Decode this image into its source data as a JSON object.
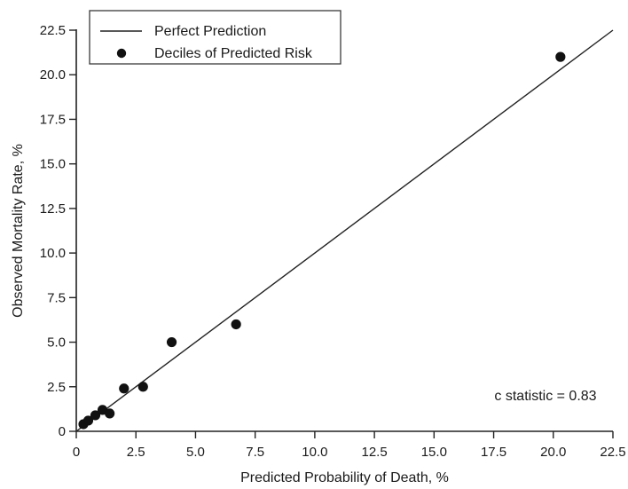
{
  "chart_data": {
    "type": "scatter",
    "xlabel": "Predicted Probability of Death, %",
    "ylabel": "Observed Mortality Rate, %",
    "xlim": [
      0,
      22.5
    ],
    "ylim": [
      0,
      22.5
    ],
    "x_ticks": [
      0,
      2.5,
      5.0,
      7.5,
      10.0,
      12.5,
      15.0,
      17.5,
      20.0,
      22.5
    ],
    "x_tick_labels": [
      "0",
      "2.5",
      "5.0",
      "7.5",
      "10.0",
      "12.5",
      "15.0",
      "17.5",
      "20.0",
      "22.5"
    ],
    "y_ticks": [
      0,
      2.5,
      5.0,
      7.5,
      10.0,
      12.5,
      15.0,
      17.5,
      20.0,
      22.5
    ],
    "y_tick_labels": [
      "0",
      "2.5",
      "5.0",
      "7.5",
      "10.0",
      "12.5",
      "15.0",
      "17.5",
      "20.0",
      "22.5"
    ],
    "grid": false,
    "legend_position": "top-left",
    "series": [
      {
        "name": "Perfect Prediction",
        "kind": "line",
        "points": [
          {
            "x": 0,
            "y": 0
          },
          {
            "x": 22.5,
            "y": 22.5
          }
        ]
      },
      {
        "name": "Deciles of Predicted Risk",
        "kind": "scatter",
        "points": [
          {
            "x": 0.3,
            "y": 0.4
          },
          {
            "x": 0.5,
            "y": 0.6
          },
          {
            "x": 0.8,
            "y": 0.9
          },
          {
            "x": 1.1,
            "y": 1.2
          },
          {
            "x": 1.4,
            "y": 1.0
          },
          {
            "x": 2.0,
            "y": 2.4
          },
          {
            "x": 2.8,
            "y": 2.5
          },
          {
            "x": 4.0,
            "y": 5.0
          },
          {
            "x": 6.7,
            "y": 6.0
          },
          {
            "x": 20.3,
            "y": 21.0
          }
        ]
      }
    ],
    "annotation": "c statistic = 0.83",
    "colors": {
      "line": "#222222",
      "points": "#111111",
      "axes": "#222222",
      "text": "#1a1a1a"
    }
  }
}
